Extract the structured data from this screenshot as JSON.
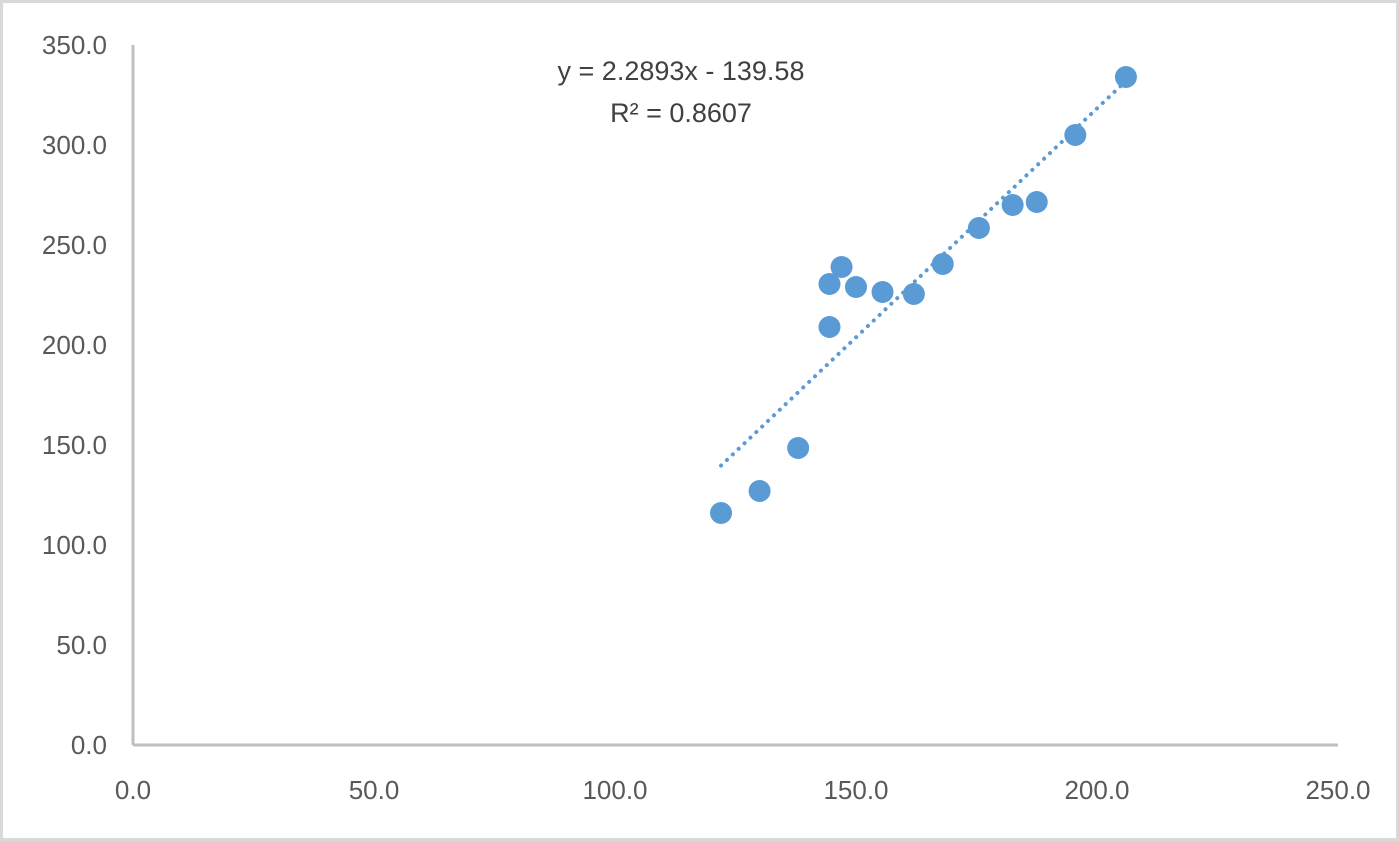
{
  "chart_data": {
    "type": "scatter",
    "title": "",
    "xlabel": "",
    "ylabel": "",
    "xlim": [
      0,
      250
    ],
    "ylim": [
      0,
      350
    ],
    "x_ticks": [
      "0.0",
      "50.0",
      "100.0",
      "150.0",
      "200.0",
      "250.0"
    ],
    "y_ticks": [
      "0.0",
      "50.0",
      "100.0",
      "150.0",
      "200.0",
      "250.0",
      "300.0",
      "350.0"
    ],
    "grid": false,
    "legend": "none",
    "series": [
      {
        "color": "#5b9bd5",
        "x": [
          122,
          130,
          138,
          144.5,
          144.5,
          147,
          150,
          155.5,
          162,
          168,
          175.5,
          182.5,
          187.5,
          195.5,
          206
        ],
        "y": [
          116,
          127,
          148.5,
          209,
          230.5,
          239,
          229,
          226.5,
          225.5,
          240.5,
          258.5,
          270,
          271.5,
          305,
          334
        ]
      }
    ],
    "trendline": {
      "type": "linear",
      "style": "dotted",
      "color": "#5b9bd5",
      "slope": 2.2893,
      "intercept": -139.58,
      "x_range": [
        122,
        206
      ],
      "equation_label": "y = 2.2893x - 139.58",
      "r2_label": "R² = 0.8607"
    },
    "axis_color": "#bfbfbf"
  }
}
